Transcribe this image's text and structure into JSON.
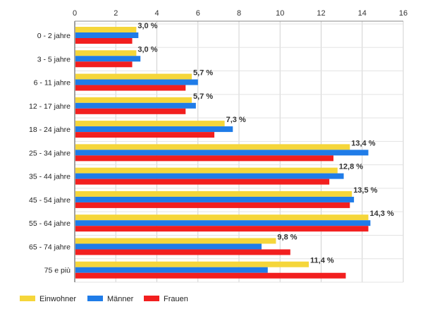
{
  "chart_data": {
    "type": "bar",
    "orientation": "horizontal",
    "categories": [
      "0 - 2 jahre",
      "3 - 5 jahre",
      "6 - 11 jahre",
      "12 - 17 jahre",
      "18 - 24 jahre",
      "25 - 34 jahre",
      "35 - 44 jahre",
      "45 - 54 jahre",
      "55 - 64 jahre",
      "65 - 74 jahre",
      "75 e più"
    ],
    "series": [
      {
        "name": "Einwohner",
        "color": "#f5d63a",
        "values": [
          3.0,
          3.0,
          5.7,
          5.7,
          7.3,
          13.4,
          12.8,
          13.5,
          14.3,
          9.8,
          11.4
        ]
      },
      {
        "name": "Männer",
        "color": "#1f7ce8",
        "values": [
          3.1,
          3.2,
          6.0,
          5.9,
          7.7,
          14.3,
          13.1,
          13.6,
          14.4,
          9.1,
          9.4
        ]
      },
      {
        "name": "Frauen",
        "color": "#f21f1f",
        "values": [
          2.8,
          2.8,
          5.4,
          5.4,
          6.8,
          12.6,
          12.4,
          13.4,
          14.3,
          10.5,
          13.2
        ]
      }
    ],
    "data_labels": [
      "3,0 %",
      "3,0 %",
      "5,7 %",
      "5,7 %",
      "7,3 %",
      "13,4 %",
      "12,8 %",
      "13,5 %",
      "14,3 %",
      "9,8 %",
      "11,4 %"
    ],
    "x_ticks": [
      "0",
      "2",
      "4",
      "6",
      "8",
      "10",
      "12",
      "14",
      "16"
    ],
    "xlim": [
      0,
      16
    ],
    "grid": true,
    "legend_position": "bottom-left",
    "title": "",
    "xlabel": "",
    "ylabel": ""
  }
}
